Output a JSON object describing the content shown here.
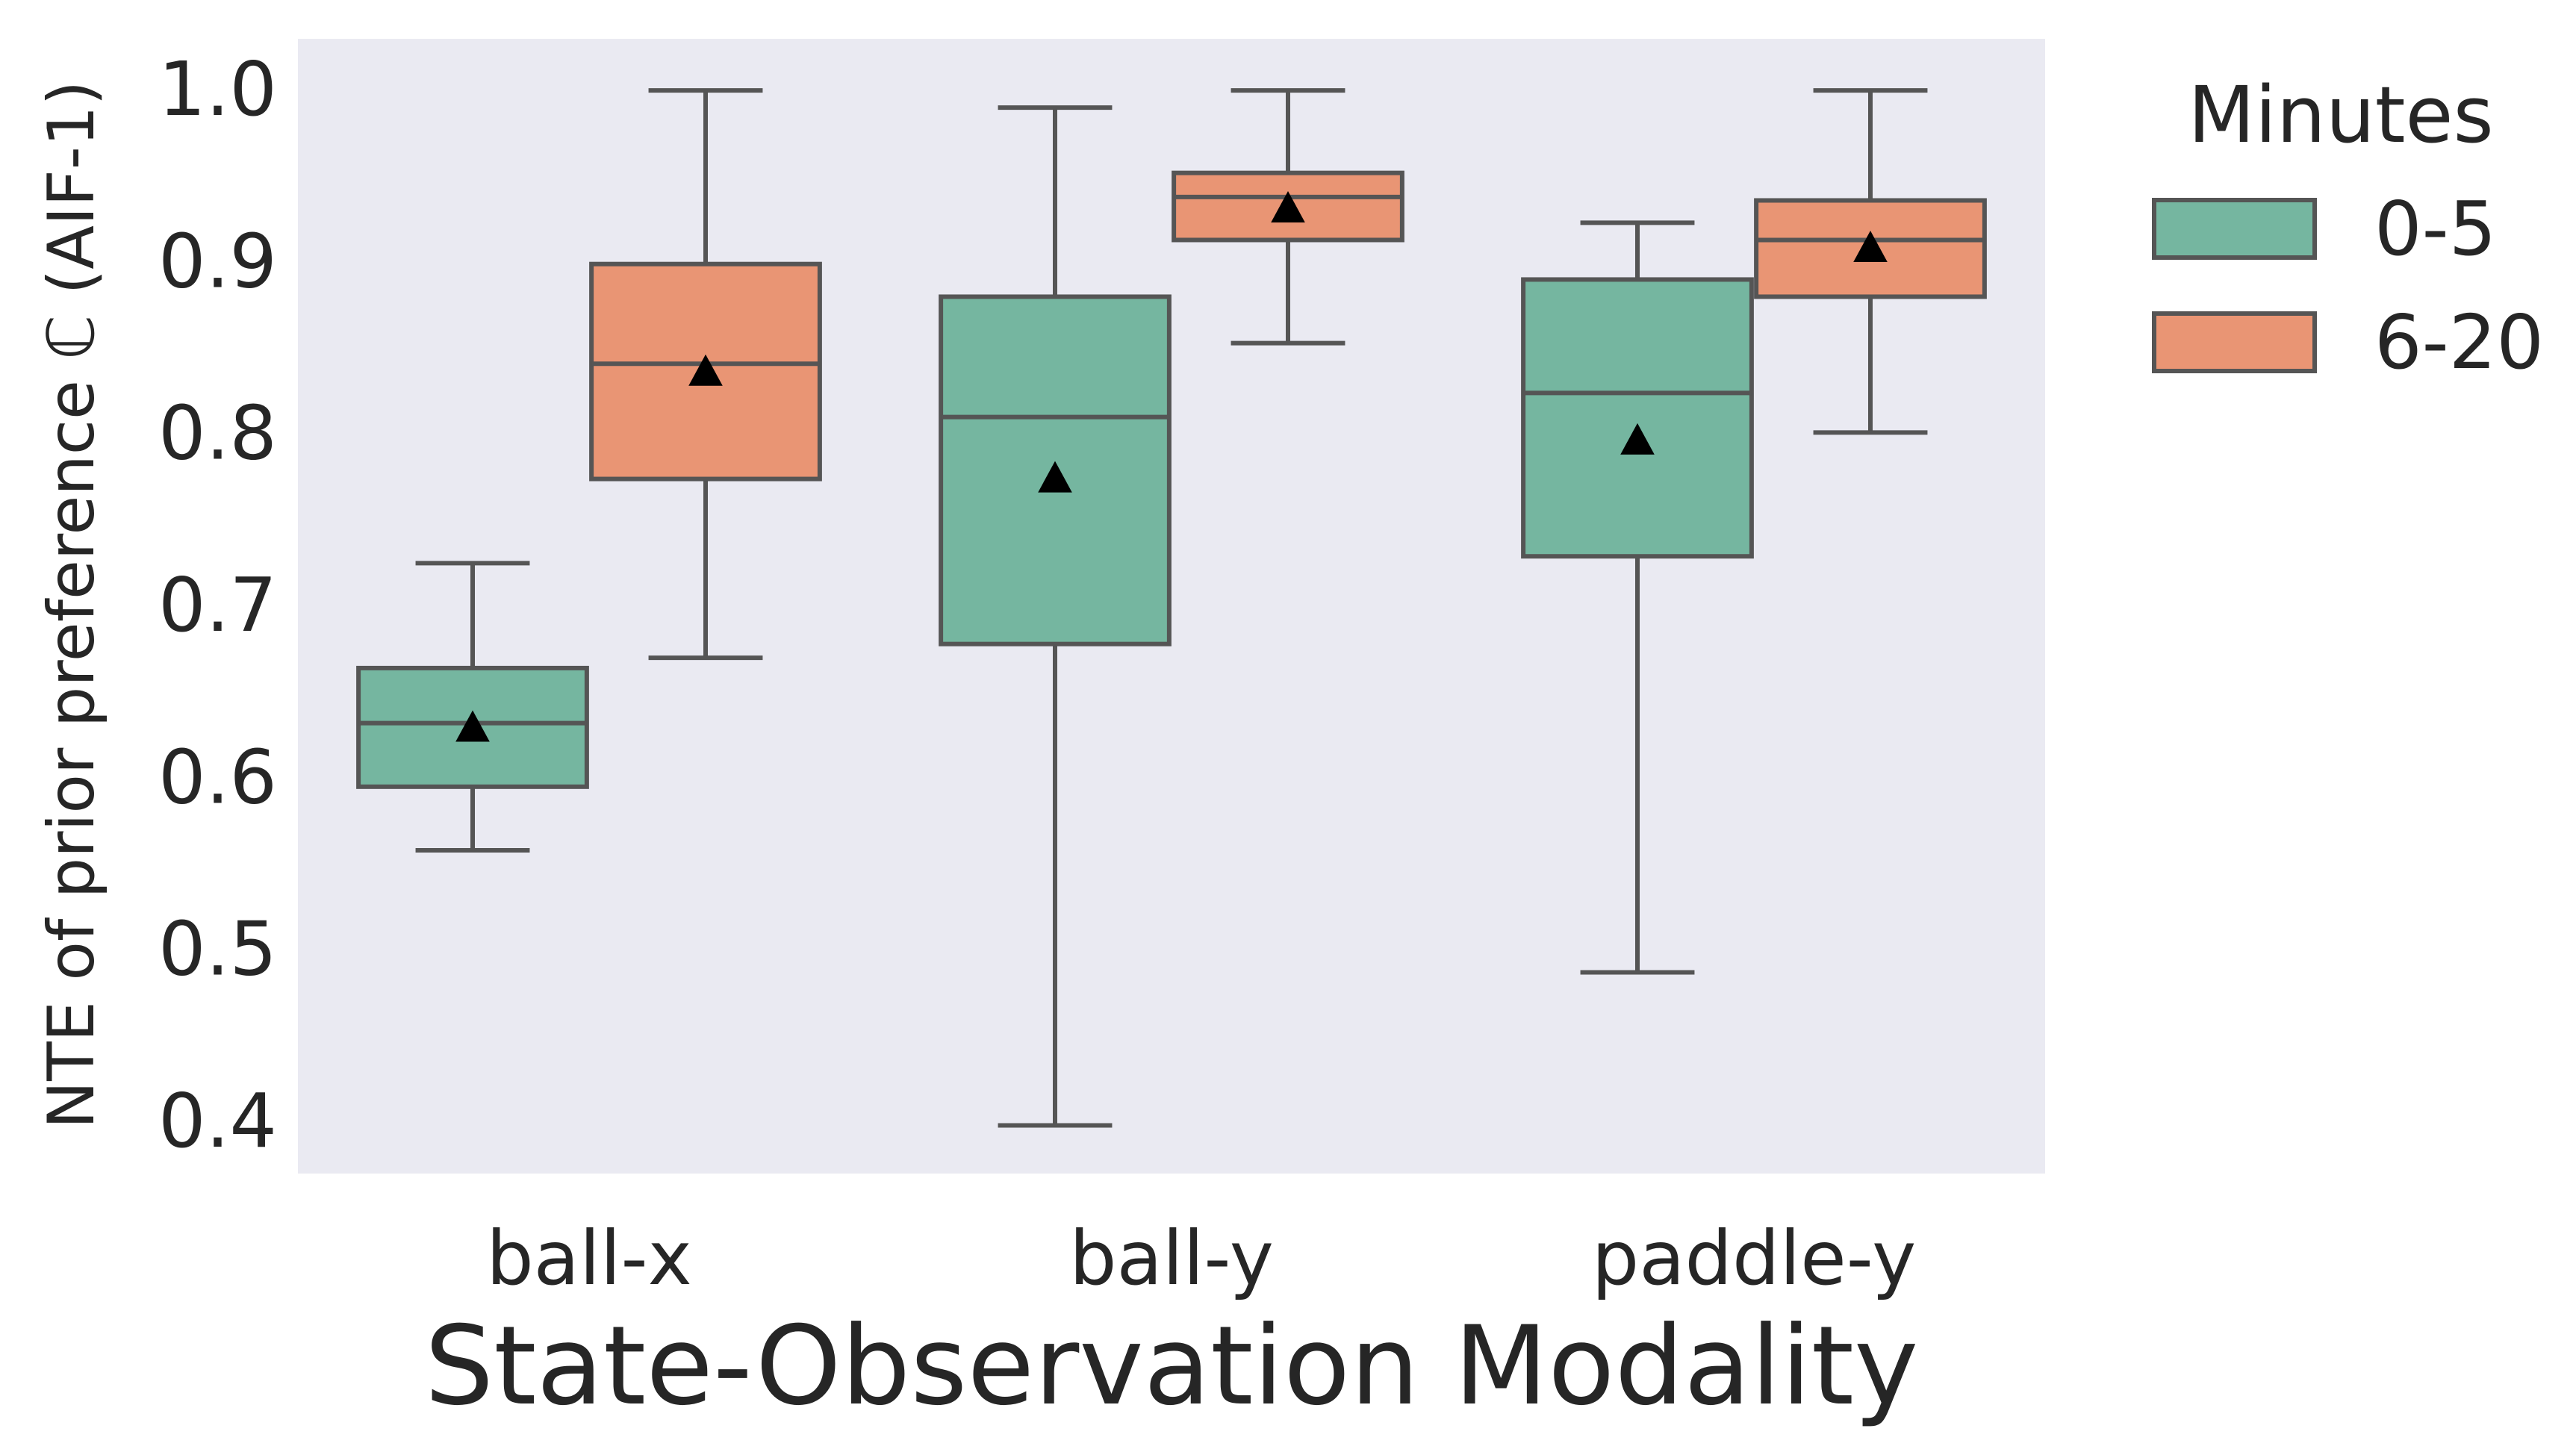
{
  "chart_data": {
    "type": "box",
    "title": "",
    "xlabel": "State-Observation Modality",
    "ylabel": "NTE of prior preference ℂ (AIF-1)",
    "categories": [
      "ball-x",
      "ball-y",
      "paddle-y"
    ],
    "ylim": [
      0.37,
      1.03
    ],
    "yticks": [
      0.4,
      0.5,
      0.6,
      0.7,
      0.8,
      0.9,
      1.0
    ],
    "ytick_labels": [
      "0.4",
      "0.5",
      "0.6",
      "0.7",
      "0.8",
      "0.9",
      "1.0"
    ],
    "grid": false,
    "legend": {
      "title": "Minutes",
      "position": "outside-right-top"
    },
    "series": [
      {
        "name": "0-5",
        "color": "#75b6a0",
        "boxes": [
          {
            "category": "ball-x",
            "whisker_low": 0.558,
            "q1": 0.595,
            "median": 0.632,
            "q3": 0.664,
            "whisker_high": 0.725,
            "mean": 0.629
          },
          {
            "category": "ball-y",
            "whisker_low": 0.398,
            "q1": 0.678,
            "median": 0.81,
            "q3": 0.88,
            "whisker_high": 0.99,
            "mean": 0.774
          },
          {
            "category": "paddle-y",
            "whisker_low": 0.487,
            "q1": 0.729,
            "median": 0.824,
            "q3": 0.89,
            "whisker_high": 0.923,
            "mean": 0.796
          }
        ]
      },
      {
        "name": "6-20",
        "color": "#e99574",
        "boxes": [
          {
            "category": "ball-x",
            "whisker_low": 0.67,
            "q1": 0.774,
            "median": 0.841,
            "q3": 0.899,
            "whisker_high": 1.0,
            "mean": 0.836
          },
          {
            "category": "ball-y",
            "whisker_low": 0.853,
            "q1": 0.913,
            "median": 0.938,
            "q3": 0.952,
            "whisker_high": 1.0,
            "mean": 0.931
          },
          {
            "category": "paddle-y",
            "whisker_low": 0.801,
            "q1": 0.88,
            "median": 0.913,
            "q3": 0.936,
            "whisker_high": 1.0,
            "mean": 0.908
          }
        ]
      }
    ],
    "colors": {
      "plot_background": "#eaeaf2",
      "line": "#555555",
      "text": "#262626",
      "mean_marker": "#000000"
    }
  }
}
